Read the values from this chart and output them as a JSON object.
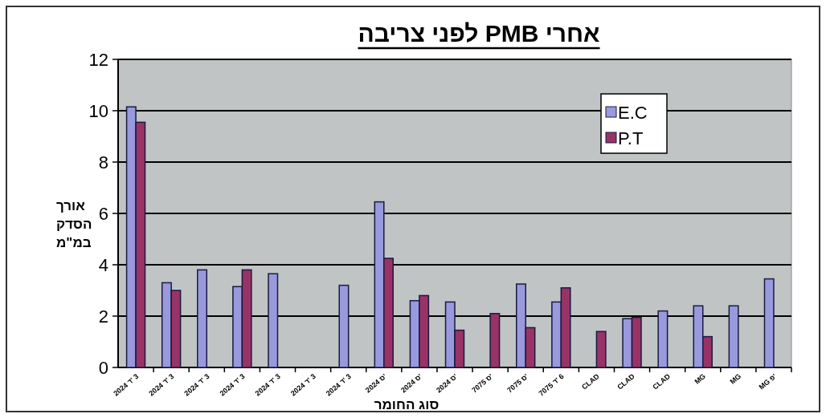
{
  "chart_data": {
    "type": "bar",
    "title": "אחרי PMB לפני צריבה",
    "xlabel": "סוג החומר",
    "ylabel": "אורך הסדק במ\"מ",
    "categories": [
      "2024 ד' 3",
      "2024 ד' 3",
      "2024 ד' 3",
      "2024 ד' 3",
      "2024 ד' 3",
      "2024 ד' 3",
      "2024 ד' 3",
      "2024 ס'",
      "2024 ס'",
      "2024 ס'",
      "7075 ס'",
      "7075 ס'",
      "7075 ד' 6",
      "CLAD",
      "CLAD",
      "CLAD",
      "MG",
      "MG",
      "MG פ'"
    ],
    "series": [
      {
        "name": "E.C",
        "color": "#9999dd",
        "values": [
          10.15,
          3.3,
          3.8,
          3.15,
          3.65,
          null,
          3.2,
          6.45,
          2.6,
          2.55,
          null,
          3.25,
          2.55,
          null,
          1.9,
          2.2,
          2.4,
          2.4,
          3.45
        ]
      },
      {
        "name": "P.T",
        "color": "#993366",
        "values": [
          9.55,
          3.0,
          null,
          3.8,
          null,
          null,
          null,
          4.25,
          2.8,
          1.45,
          2.1,
          1.55,
          3.1,
          1.4,
          1.95,
          null,
          1.2,
          null,
          null
        ]
      }
    ],
    "ylim": [
      0,
      12
    ],
    "yticks": [
      0,
      2,
      4,
      6,
      8,
      10,
      12
    ],
    "grid": "y",
    "legend": "top right"
  }
}
